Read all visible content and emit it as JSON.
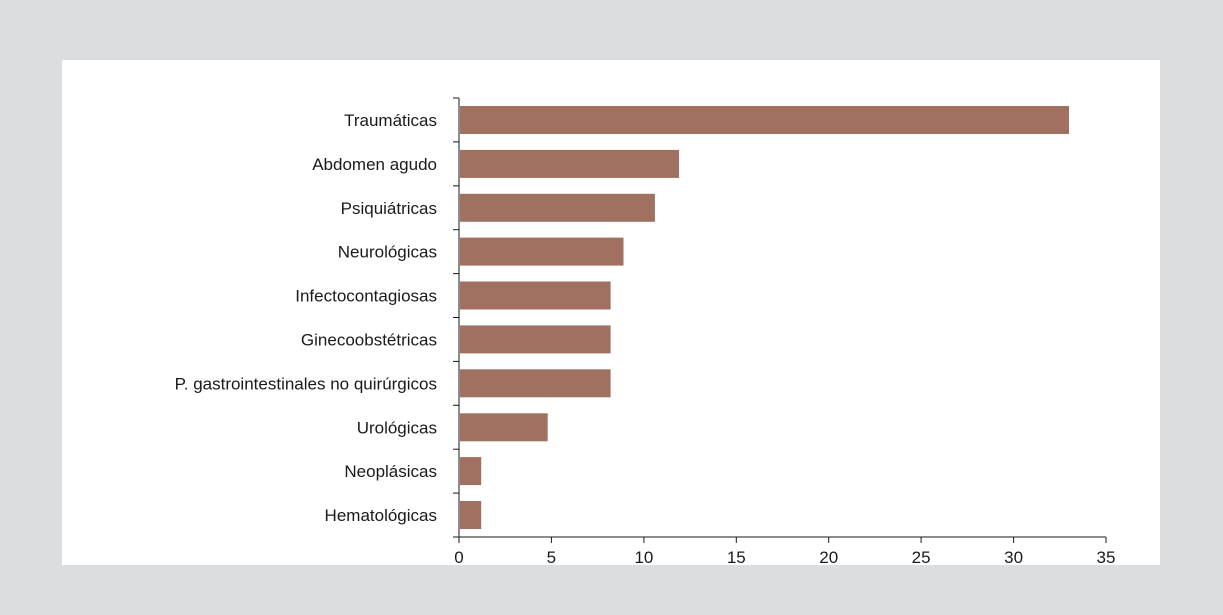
{
  "chart_data": {
    "type": "bar",
    "orientation": "horizontal",
    "categories": [
      "Traumáticas",
      "Abdomen agudo",
      "Psiquiátricas",
      "Neurológicas",
      "Infectocontagiosas",
      "Ginecoobstétricas",
      "P. gastrointestinales no quirúrgicos",
      "Urológicas",
      "Neoplásicas",
      "Hematológicas"
    ],
    "values": [
      33,
      11.9,
      10.6,
      8.9,
      8.2,
      8.2,
      8.2,
      4.8,
      1.2,
      1.2
    ],
    "xlim": [
      0,
      35
    ],
    "x_ticks": [
      "0",
      "5",
      "10",
      "15",
      "20",
      "25",
      "30",
      "35"
    ],
    "title": "",
    "xlabel": "",
    "ylabel": "",
    "grid": false,
    "colors": {
      "bar": "#a07060",
      "background": "#dcdddf",
      "panel": "#ffffff",
      "text": "#1a1a1a"
    }
  }
}
